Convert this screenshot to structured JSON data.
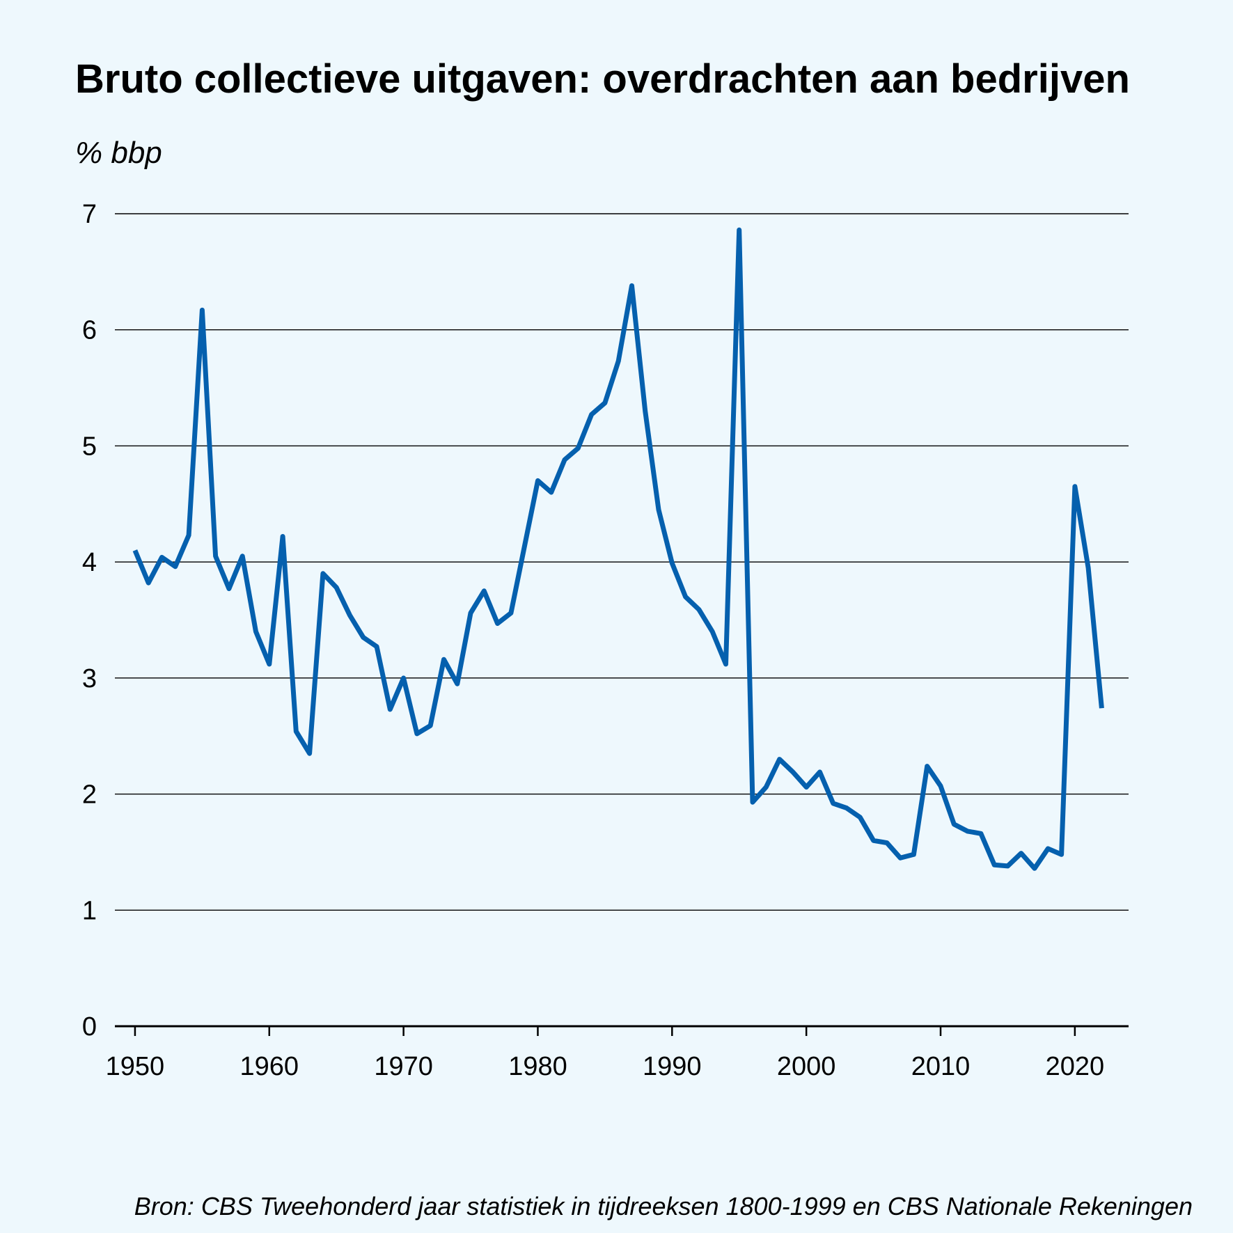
{
  "title": "Bruto collectieve uitgaven: overdrachten aan bedrijven",
  "y_unit": "% bbp",
  "source": "Bron: CBS Tweehonderd jaar statistiek in tijdreeksen 1800-1999 en CBS Nationale Rekeningen",
  "colors": {
    "background": "#eef8fd",
    "line": "#0560ae",
    "grid": "#000000"
  },
  "chart_data": {
    "type": "line",
    "title": "Bruto collectieve uitgaven: overdrachten aan bedrijven",
    "xlabel": "",
    "ylabel": "% bbp",
    "xlim": [
      1948.5,
      2024
    ],
    "ylim": [
      0,
      7
    ],
    "x_ticks": [
      1950,
      1960,
      1970,
      1980,
      1990,
      2000,
      2010,
      2020
    ],
    "y_ticks": [
      0,
      1,
      2,
      3,
      4,
      5,
      6,
      7
    ],
    "grid": true,
    "series": [
      {
        "name": "Overdrachten aan bedrijven",
        "x": [
          1950,
          1951,
          1952,
          1953,
          1954,
          1955,
          1956,
          1957,
          1958,
          1959,
          1960,
          1961,
          1962,
          1963,
          1964,
          1965,
          1966,
          1967,
          1968,
          1969,
          1970,
          1971,
          1972,
          1973,
          1974,
          1975,
          1976,
          1977,
          1978,
          1979,
          1980,
          1981,
          1982,
          1983,
          1984,
          1985,
          1986,
          1987,
          1988,
          1989,
          1990,
          1991,
          1992,
          1993,
          1994,
          1995,
          1996,
          1997,
          1998,
          1999,
          2000,
          2001,
          2002,
          2003,
          2004,
          2005,
          2006,
          2007,
          2008,
          2009,
          2010,
          2011,
          2012,
          2013,
          2014,
          2015,
          2016,
          2017,
          2018,
          2019,
          2020,
          2021,
          2022
        ],
        "y": [
          4.1,
          3.82,
          4.04,
          3.96,
          4.23,
          6.17,
          4.05,
          3.77,
          4.05,
          3.4,
          3.12,
          4.22,
          2.54,
          2.35,
          3.9,
          3.78,
          3.54,
          3.35,
          3.27,
          2.73,
          3.0,
          2.52,
          2.59,
          3.16,
          2.95,
          3.56,
          3.75,
          3.47,
          3.56,
          4.13,
          4.7,
          4.6,
          4.88,
          4.98,
          5.27,
          5.37,
          5.73,
          6.38,
          5.3,
          4.45,
          3.99,
          3.7,
          3.59,
          3.4,
          3.12,
          6.86,
          1.93,
          2.06,
          2.3,
          2.19,
          2.06,
          2.19,
          1.92,
          1.88,
          1.8,
          1.6,
          1.58,
          1.45,
          1.48,
          2.24,
          2.07,
          1.74,
          1.68,
          1.66,
          1.39,
          1.38,
          1.49,
          1.36,
          1.53,
          1.48,
          4.65,
          3.95,
          2.74
        ]
      }
    ]
  }
}
